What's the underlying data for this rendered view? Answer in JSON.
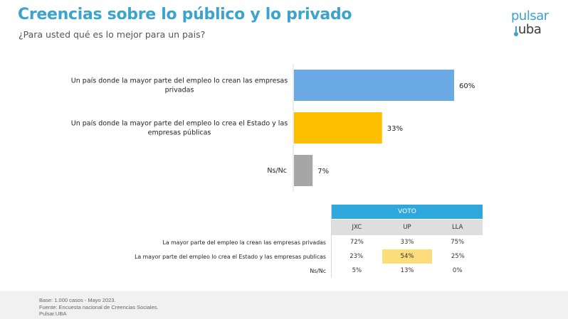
{
  "header": {
    "title": "Creencias sobre lo público y lo privado",
    "subtitle": "¿Para usted qué es lo mejor para un pais?"
  },
  "logo": {
    "line1": "pulsar",
    "line2": "uba"
  },
  "chart_data": {
    "type": "bar",
    "orientation": "horizontal",
    "title": "Creencias sobre lo público y lo privado",
    "subtitle": "¿Para usted qué es lo mejor para un pais?",
    "categories": [
      [
        "Un país donde la mayor parte del empleo lo crean las empresas",
        "privadas"
      ],
      [
        "Un país donde la mayor parte del empleo lo crea el Estado y las",
        "empresas públicas"
      ],
      [
        "Ns/Nc"
      ]
    ],
    "values": [
      60,
      33,
      7
    ],
    "value_labels": [
      "60%",
      "33%",
      "7%"
    ],
    "colors": [
      "#6aa8e6",
      "#fdbf00",
      "#a6a6a6"
    ],
    "xlim": [
      0,
      100
    ],
    "grid": false,
    "legend": "none"
  },
  "vote_table": {
    "header": "VOTO",
    "columns": [
      "JXC",
      "UP",
      "LLA"
    ],
    "rows": [
      {
        "label": "La mayor parte del empleo la crean las empresas privadas",
        "values": [
          "72%",
          "33%",
          "75%"
        ]
      },
      {
        "label": "La mayor parte del empleo lo crea el Estado y las empresas publicas",
        "values": [
          "23%",
          "54%",
          "25%"
        ]
      },
      {
        "label": "Ns/Nc",
        "values": [
          "5%",
          "13%",
          "0%"
        ]
      }
    ],
    "highlight": {
      "row": 1,
      "col": 1
    },
    "header_color": "#2ea8dc",
    "highlight_color": "#fddc7a"
  },
  "footer": {
    "lines": [
      "Base:  1.000 casos - Mayo 2023.",
      "Fuente: Encuesta nacional de Creencias Sociales.",
      "Pulsar.UBA"
    ]
  }
}
